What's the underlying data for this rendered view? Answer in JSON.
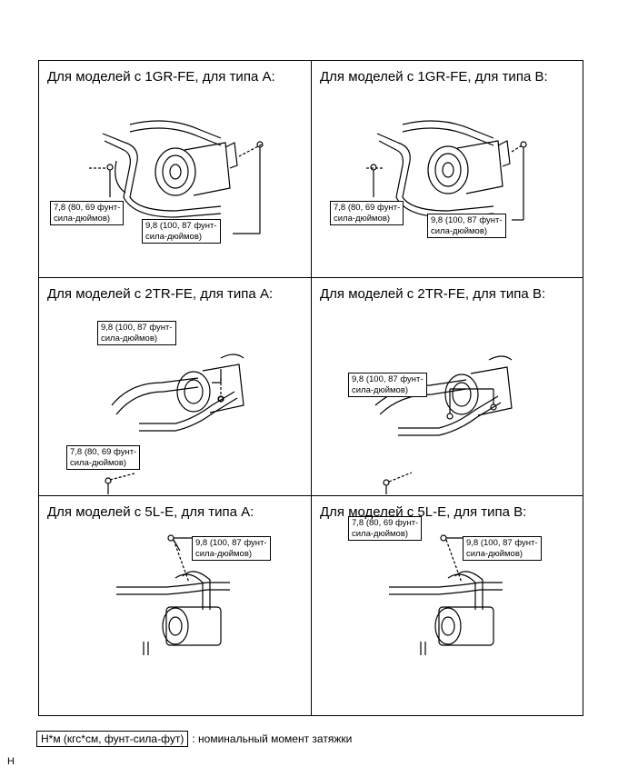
{
  "cells": [
    {
      "title": "Для моделей с 1GR-FE, для типа A:",
      "labels": [
        "7,8 (80, 69 фунт-\nсила-дюймов)",
        "9,8 (100, 87 фунт-\nсила-дюймов)"
      ]
    },
    {
      "title": "Для моделей с 1GR-FE, для типа B:",
      "labels": [
        "7,8 (80, 69 фунт-\nсила-дюймов)",
        "9,8 (100, 87 фунт-\nсила-дюймов)"
      ]
    },
    {
      "title": "Для моделей с 2TR-FE, для типа A:",
      "labels": [
        "9,8 (100, 87 фунт-\nсила-дюймов)",
        "7,8 (80, 69 фунт-\nсила-дюймов)"
      ]
    },
    {
      "title": "Для моделей с 2TR-FE, для типа B:",
      "labels": [
        "9,8 (100, 87 фунт-\nсила-дюймов)",
        "7,8 (80, 69 фунт-\nсила-дюймов)"
      ]
    },
    {
      "title": "Для моделей с 5L-E, для типа A:",
      "labels": [
        "9,8 (100, 87 фунт-\nсила-дюймов)"
      ]
    },
    {
      "title": "Для моделей с 5L-E, для типа B:",
      "labels": [
        "9,8 (100, 87 фунт-\nсила-дюймов)"
      ]
    }
  ],
  "legend": {
    "box_text": "Н*м (кгс*см, фунт-сила-фут)",
    "description": ": номинальный момент затяжки"
  },
  "footer_mark": "H"
}
